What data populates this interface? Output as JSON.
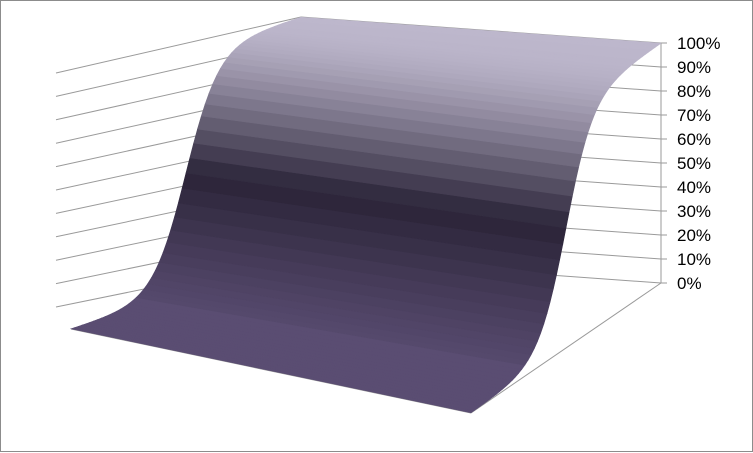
{
  "chart_data": {
    "type": "surface-3d",
    "title": "",
    "xlabel": "",
    "ylabel": "",
    "zlabel": "",
    "z_tick_labels": [
      "0%",
      "10%",
      "20%",
      "30%",
      "40%",
      "50%",
      "60%",
      "70%",
      "80%",
      "90%",
      "100%"
    ],
    "zlim": [
      0,
      1
    ],
    "z_tick_values": [
      0,
      0.1,
      0.2,
      0.3,
      0.4,
      0.5,
      0.6,
      0.7,
      0.8,
      0.9,
      1.0
    ],
    "grid": true,
    "legend": "none",
    "surface_shape": "logistic sigmoid: flat near 0% in the front half, steep rise through the middle, plateau at 100% toward the back",
    "colors": {
      "low": "#5a4d72",
      "mid": "#2b2438",
      "high": "#bdb7cc",
      "grid": "#9a9a9a",
      "frame": "#8c8c8c"
    }
  }
}
